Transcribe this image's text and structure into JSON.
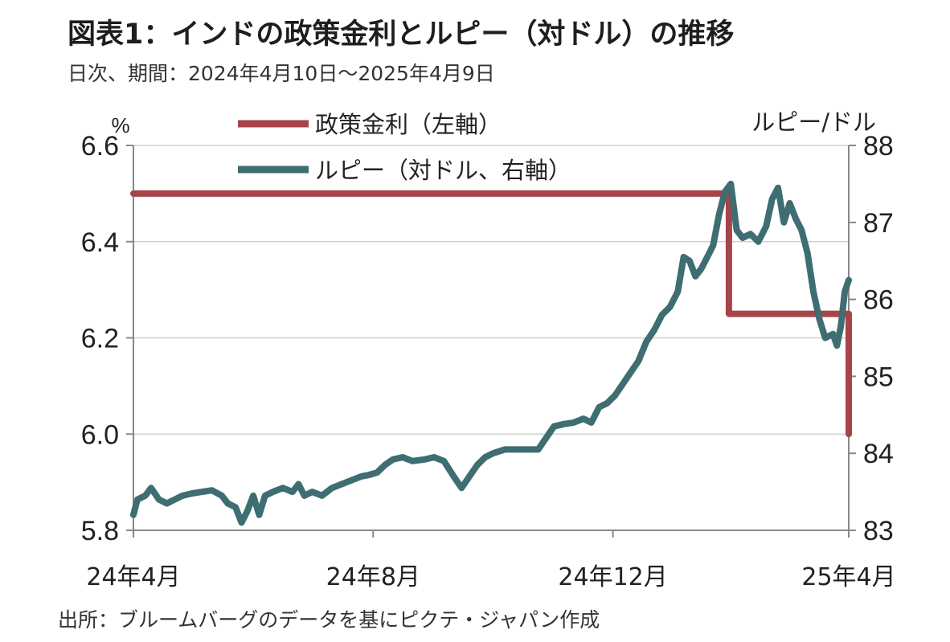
{
  "title": "図表1：インドの政策金利とルピー（対ドル）の推移",
  "subtitle": "日次、期間：2024年4月10日～2025年4月9日",
  "source": "出所：ブルームバーグのデータを基にピクテ・ジャパン作成",
  "colors": {
    "policy_rate": "#a5444a",
    "rupee": "#3e6d72",
    "grid": "#d0d0d0",
    "axis": "#888888"
  },
  "chart_data": {
    "type": "line",
    "left_axis": {
      "unit": "%",
      "ylim": [
        5.8,
        6.6
      ],
      "ticks": [
        "6.6",
        "6.4",
        "6.2",
        "6.0",
        "5.8"
      ]
    },
    "right_axis": {
      "unit": "ルピー/ドル",
      "ylim": [
        83,
        88
      ],
      "ticks": [
        "88",
        "87",
        "86",
        "85",
        "84",
        "83"
      ]
    },
    "x_axis": {
      "range": [
        "2024-04-10",
        "2025-04-09"
      ],
      "tick_labels": [
        "24年4月",
        "24年8月",
        "24年12月",
        "25年4月"
      ],
      "tick_dates": [
        "2024-04-10",
        "2024-08-10",
        "2024-12-10",
        "2025-04-09"
      ]
    },
    "grid": "horizontal",
    "legend": {
      "position": "top-center",
      "items": [
        "政策金利（左軸）",
        "ルピー（対ドル、右軸）"
      ]
    },
    "series": [
      {
        "name": "政策金利（左軸）",
        "axis": "left",
        "points": [
          [
            "2024-04-10",
            6.5
          ],
          [
            "2025-02-06",
            6.5
          ],
          [
            "2025-02-07",
            6.25
          ],
          [
            "2025-04-08",
            6.25
          ],
          [
            "2025-04-09",
            6.0
          ]
        ]
      },
      {
        "name": "ルピー（対ドル、右軸）",
        "axis": "right",
        "points": [
          [
            "2024-04-10",
            83.2
          ],
          [
            "2024-04-12",
            83.4
          ],
          [
            "2024-04-16",
            83.45
          ],
          [
            "2024-04-19",
            83.55
          ],
          [
            "2024-04-23",
            83.4
          ],
          [
            "2024-04-27",
            83.35
          ],
          [
            "2024-05-01",
            83.4
          ],
          [
            "2024-05-05",
            83.45
          ],
          [
            "2024-05-10",
            83.48
          ],
          [
            "2024-05-15",
            83.5
          ],
          [
            "2024-05-20",
            83.52
          ],
          [
            "2024-05-25",
            83.45
          ],
          [
            "2024-05-28",
            83.35
          ],
          [
            "2024-06-01",
            83.3
          ],
          [
            "2024-06-04",
            83.1
          ],
          [
            "2024-06-07",
            83.25
          ],
          [
            "2024-06-10",
            83.45
          ],
          [
            "2024-06-13",
            83.2
          ],
          [
            "2024-06-16",
            83.45
          ],
          [
            "2024-06-20",
            83.5
          ],
          [
            "2024-06-25",
            83.55
          ],
          [
            "2024-06-30",
            83.5
          ],
          [
            "2024-07-03",
            83.6
          ],
          [
            "2024-07-06",
            83.45
          ],
          [
            "2024-07-10",
            83.5
          ],
          [
            "2024-07-15",
            83.45
          ],
          [
            "2024-07-20",
            83.55
          ],
          [
            "2024-07-25",
            83.6
          ],
          [
            "2024-07-30",
            83.65
          ],
          [
            "2024-08-04",
            83.7
          ],
          [
            "2024-08-08",
            83.72
          ],
          [
            "2024-08-12",
            83.75
          ],
          [
            "2024-08-16",
            83.85
          ],
          [
            "2024-08-20",
            83.92
          ],
          [
            "2024-08-25",
            83.95
          ],
          [
            "2024-08-30",
            83.9
          ],
          [
            "2024-09-05",
            83.92
          ],
          [
            "2024-09-10",
            83.95
          ],
          [
            "2024-09-15",
            83.9
          ],
          [
            "2024-09-20",
            83.7
          ],
          [
            "2024-09-24",
            83.55
          ],
          [
            "2024-09-28",
            83.7
          ],
          [
            "2024-10-02",
            83.85
          ],
          [
            "2024-10-06",
            83.95
          ],
          [
            "2024-10-10",
            84.0
          ],
          [
            "2024-10-16",
            84.05
          ],
          [
            "2024-10-22",
            84.05
          ],
          [
            "2024-10-28",
            84.05
          ],
          [
            "2024-11-02",
            84.05
          ],
          [
            "2024-11-06",
            84.2
          ],
          [
            "2024-11-10",
            84.35
          ],
          [
            "2024-11-15",
            84.38
          ],
          [
            "2024-11-20",
            84.4
          ],
          [
            "2024-11-25",
            84.45
          ],
          [
            "2024-11-29",
            84.4
          ],
          [
            "2024-12-03",
            84.6
          ],
          [
            "2024-12-07",
            84.65
          ],
          [
            "2024-12-11",
            84.75
          ],
          [
            "2024-12-15",
            84.9
          ],
          [
            "2024-12-19",
            85.05
          ],
          [
            "2024-12-23",
            85.2
          ],
          [
            "2024-12-27",
            85.45
          ],
          [
            "2024-12-31",
            85.6
          ],
          [
            "2025-01-04",
            85.8
          ],
          [
            "2025-01-08",
            85.9
          ],
          [
            "2025-01-12",
            86.1
          ],
          [
            "2025-01-15",
            86.55
          ],
          [
            "2025-01-18",
            86.5
          ],
          [
            "2025-01-21",
            86.3
          ],
          [
            "2025-01-24",
            86.4
          ],
          [
            "2025-01-27",
            86.55
          ],
          [
            "2025-01-30",
            86.7
          ],
          [
            "2025-02-02",
            87.1
          ],
          [
            "2025-02-05",
            87.4
          ],
          [
            "2025-02-08",
            87.5
          ],
          [
            "2025-02-11",
            86.9
          ],
          [
            "2025-02-14",
            86.8
          ],
          [
            "2025-02-18",
            86.85
          ],
          [
            "2025-02-22",
            86.75
          ],
          [
            "2025-02-26",
            86.95
          ],
          [
            "2025-03-01",
            87.3
          ],
          [
            "2025-03-04",
            87.45
          ],
          [
            "2025-03-07",
            87.0
          ],
          [
            "2025-03-10",
            87.25
          ],
          [
            "2025-03-13",
            87.05
          ],
          [
            "2025-03-16",
            86.9
          ],
          [
            "2025-03-19",
            86.6
          ],
          [
            "2025-03-22",
            86.1
          ],
          [
            "2025-03-25",
            85.75
          ],
          [
            "2025-03-28",
            85.5
          ],
          [
            "2025-04-01",
            85.55
          ],
          [
            "2025-04-03",
            85.4
          ],
          [
            "2025-04-05",
            85.65
          ],
          [
            "2025-04-07",
            86.1
          ],
          [
            "2025-04-09",
            86.25
          ]
        ]
      }
    ]
  }
}
